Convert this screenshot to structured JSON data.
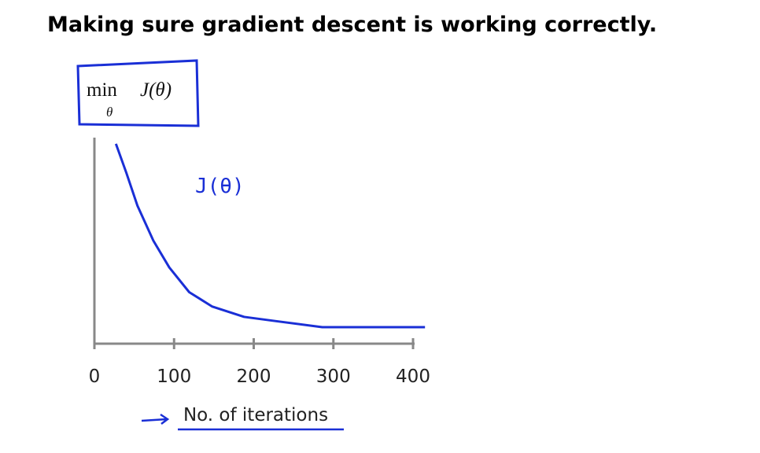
{
  "chart_data": {
    "type": "line",
    "title": "Making sure gradient descent is working correctly.",
    "objective": {
      "operator": "min",
      "subscript": "θ",
      "expression": "J(θ)"
    },
    "x_label": "No. of iterations",
    "series": [
      {
        "name": "J(θ)",
        "color": "#1a2fd6",
        "x": [
          27,
          40,
          54,
          74,
          94,
          119,
          148,
          188,
          227,
          286,
          356,
          415
        ],
        "values": [
          0.97,
          0.83,
          0.67,
          0.5,
          0.37,
          0.25,
          0.18,
          0.13,
          0.11,
          0.08,
          0.08,
          0.08
        ]
      }
    ],
    "xlim": [
      0,
      400
    ],
    "xticks": [
      0,
      100,
      200,
      300,
      400
    ],
    "ylim": [
      0,
      1
    ],
    "grid": false
  }
}
